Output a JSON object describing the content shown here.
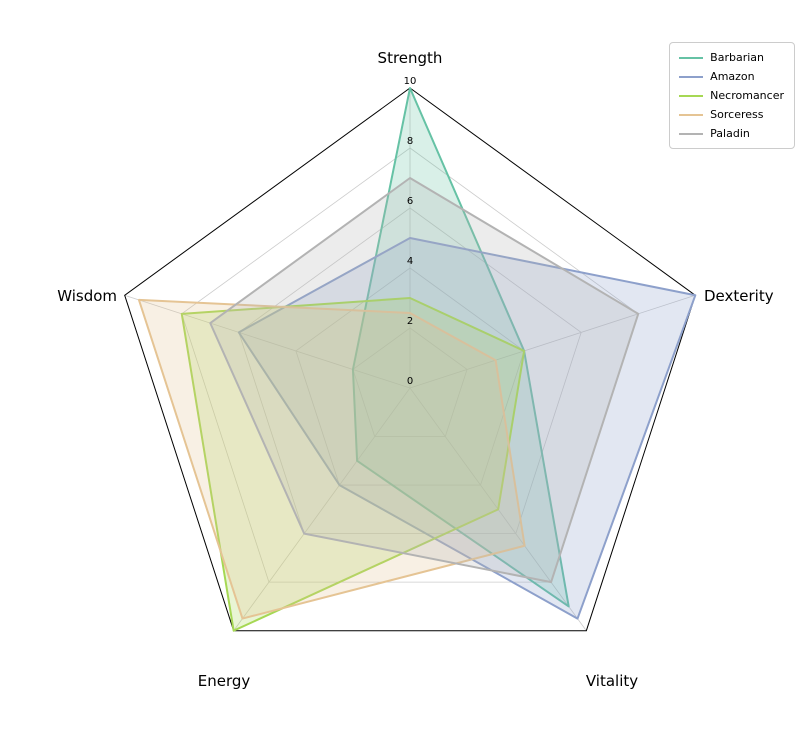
{
  "chart_data": {
    "type": "radar",
    "title": "",
    "categories": [
      "Strength",
      "Dexterity",
      "Vitality",
      "Energy",
      "Wisdom"
    ],
    "ticks": [
      0,
      2,
      4,
      6,
      8,
      10
    ],
    "rlim": [
      0,
      10
    ],
    "grid": true,
    "legend_position": "upper right",
    "fill_opacity": 0.25,
    "grid_color": "#cccccc",
    "frame_color": "#000000",
    "series": [
      {
        "name": "Barbarian",
        "color": "#66c2a5",
        "values": [
          10,
          4,
          9,
          3,
          2
        ]
      },
      {
        "name": "Amazon",
        "color": "#8da0cb",
        "values": [
          5,
          10,
          9.5,
          4,
          6
        ]
      },
      {
        "name": "Necromancer",
        "color": "#a6d854",
        "values": [
          3,
          4,
          5,
          10,
          8
        ]
      },
      {
        "name": "Sorceress",
        "color": "#e5c494",
        "values": [
          2.5,
          3,
          6.5,
          9.5,
          9.5
        ]
      },
      {
        "name": "Paladin",
        "color": "#b3b3b3",
        "values": [
          7,
          8,
          8,
          6,
          7
        ]
      }
    ]
  }
}
